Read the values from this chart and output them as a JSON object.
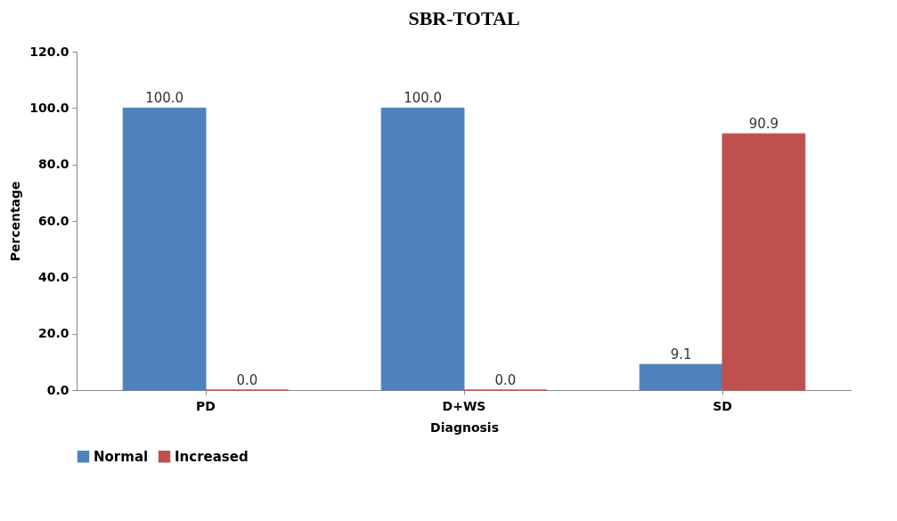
{
  "chart_data": {
    "type": "bar",
    "title": "SBR-TOTAL",
    "xlabel": "Diagnosis",
    "ylabel": "Percentage",
    "categories": [
      "PD",
      "D+WS",
      "SD"
    ],
    "series": [
      {
        "name": "Normal",
        "color": "#4f81bd",
        "values": [
          100,
          100,
          9.1
        ],
        "value_labels": [
          "100.0",
          "100.0",
          "9.1"
        ]
      },
      {
        "name": "Increased",
        "color": "#c0504d",
        "values": [
          0,
          0,
          90.9
        ],
        "value_labels": [
          "0.0",
          "0.0",
          "90.9"
        ]
      }
    ],
    "ylim": [
      0,
      120
    ],
    "yticks": [
      {
        "value": 0,
        "label": "0.0"
      },
      {
        "value": 20,
        "label": "20.0"
      },
      {
        "value": 40,
        "label": "40.0"
      },
      {
        "value": 60,
        "label": "60.0"
      },
      {
        "value": 80,
        "label": "80.0"
      },
      {
        "value": 100,
        "label": "100.0"
      },
      {
        "value": 120,
        "label": "120.0"
      }
    ],
    "grid": false,
    "legend": "bottom"
  }
}
